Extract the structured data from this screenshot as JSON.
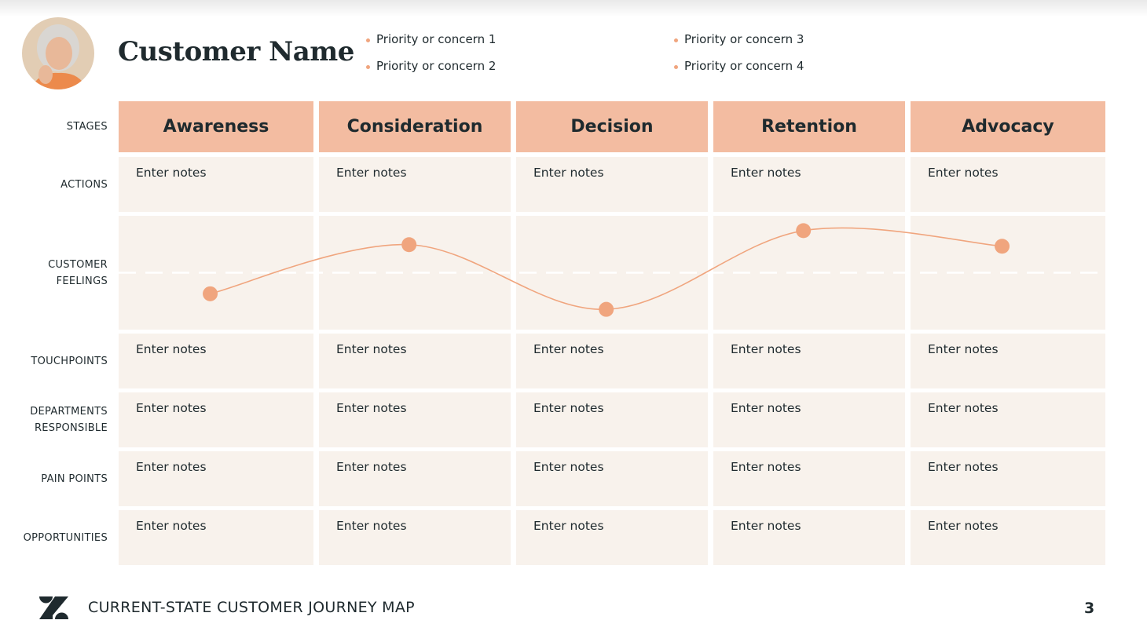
{
  "header": {
    "title": "Customer Name",
    "priorities": [
      "Priority or concern 1",
      "Priority or concern 2",
      "Priority or concern 3",
      "Priority or concern 4"
    ]
  },
  "map": {
    "row_labels": [
      "STAGES",
      "ACTIONS",
      "CUSTOMER FEELINGS",
      "TOUCHPOINTS",
      "DEPARTMENTS RESPONSIBLE",
      "PAIN POINTS",
      "OPPORTUNITIES"
    ],
    "stages": [
      "Awareness",
      "Consideration",
      "Decision",
      "Retention",
      "Advocacy"
    ],
    "notes": [
      [
        "Enter notes",
        "Enter notes",
        "Enter notes",
        "Enter notes",
        "Enter notes"
      ],
      [
        "Enter notes",
        "Enter notes",
        "Enter notes",
        "Enter notes",
        "Enter notes"
      ],
      [
        "Enter notes",
        "Enter notes",
        "Enter notes",
        "Enter notes",
        "Enter notes"
      ],
      [
        "Enter notes",
        "Enter notes",
        "Enter notes",
        "Enter notes",
        "Enter notes"
      ],
      [
        "Enter notes",
        "Enter notes",
        "Enter notes",
        "Enter notes",
        "Enter notes"
      ]
    ],
    "feelings": {
      "values": [
        -27,
        36,
        -47,
        54,
        34
      ],
      "ylim": [
        -73,
        73
      ],
      "color": "#f0a57e"
    }
  },
  "footer": {
    "title": "CURRENT-STATE CUSTOMER JOURNEY MAP",
    "page": 3
  }
}
